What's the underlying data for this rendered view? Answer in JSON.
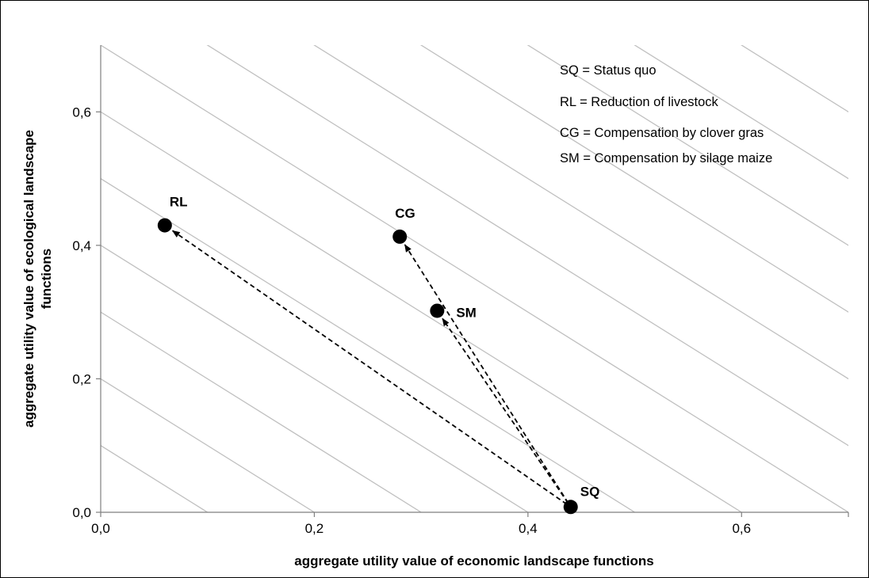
{
  "chart_data": {
    "type": "scatter",
    "title": "",
    "xlabel": "aggregate utility value of economic landscape functions",
    "ylabel_lines": [
      "aggregate utility value of ecological landscape",
      "functions"
    ],
    "xlim": [
      0,
      0.7
    ],
    "ylim": [
      0,
      0.7
    ],
    "xticks": [
      0,
      0.2,
      0.4,
      0.6
    ],
    "yticks": [
      0,
      0.2,
      0.4,
      0.6
    ],
    "xtick_labels": [
      "0,0",
      "0,2",
      "0,4",
      "0,6"
    ],
    "ytick_labels": [
      "0,0",
      "0,2",
      "0,4",
      "0,6"
    ],
    "points": [
      {
        "id": "SQ",
        "label": "SQ",
        "x": 0.44,
        "y": 0.008
      },
      {
        "id": "RL",
        "label": "RL",
        "x": 0.06,
        "y": 0.43
      },
      {
        "id": "CG",
        "label": "CG",
        "x": 0.28,
        "y": 0.413
      },
      {
        "id": "SM",
        "label": "SM",
        "x": 0.315,
        "y": 0.302
      }
    ],
    "arrows": [
      {
        "from": "SQ",
        "to": "RL"
      },
      {
        "from": "SQ",
        "to": "CG"
      },
      {
        "from": "SQ",
        "to": "SM"
      }
    ],
    "iso_lines": {
      "slope": -1,
      "intercepts": [
        0.1,
        0.2,
        0.3,
        0.4,
        0.5,
        0.6,
        0.7,
        0.8,
        0.9,
        1.0,
        1.1,
        1.2,
        1.3
      ]
    },
    "legend": {
      "position": "top-right",
      "items": [
        "SQ = Status quo",
        "RL = Reduction of livestock",
        "CG = Compensation by clover gras",
        "SM = Compensation by silage maize"
      ]
    },
    "colors": {
      "iso_line": "#c0c0c0",
      "point": "#000000",
      "arrow": "#000000"
    }
  }
}
